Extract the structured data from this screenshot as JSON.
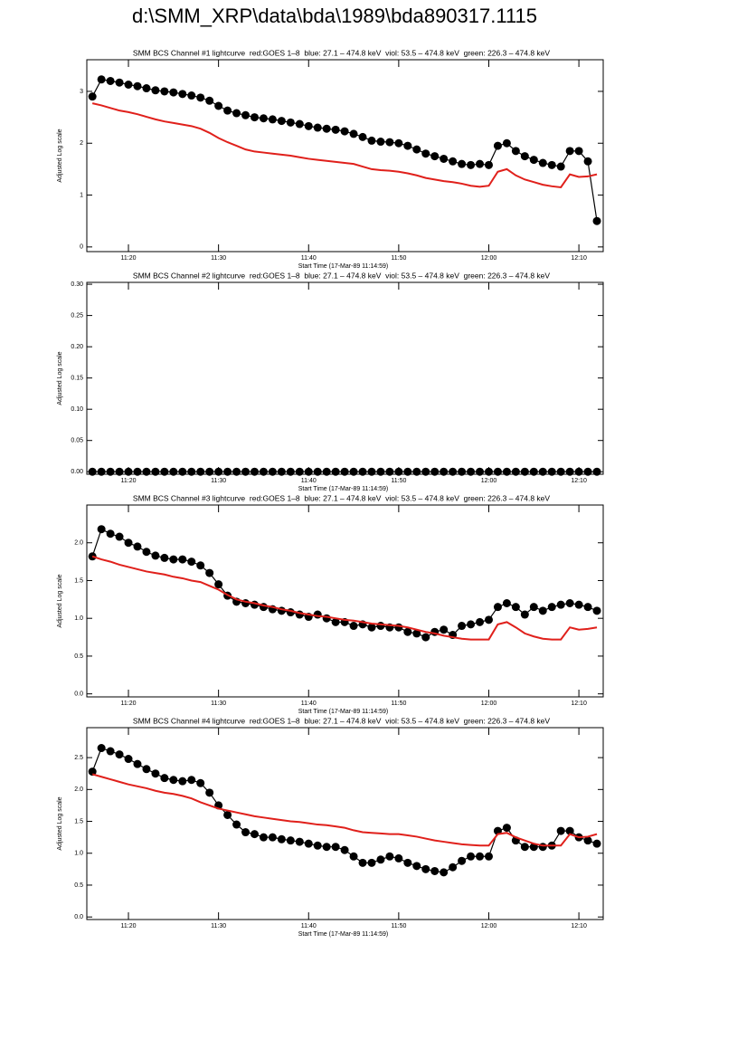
{
  "title": "d:\\SMM_XRP\\data\\bda\\1989\\bda890317.1115",
  "chart_data": [
    {
      "type": "line",
      "title": "SMM BCS Channel #1 lightcurve  red:GOES 1–8  blue: 27.1 – 474.8 keV  viol: 53.5 – 474.8 keV  green: 226.3 – 474.8 keV",
      "xlabel": "Start Time (17-Mar-89 11:14:59)",
      "ylabel": "Adjusted Log scale",
      "x": [
        676,
        677,
        678,
        679,
        680,
        681,
        682,
        683,
        684,
        685,
        686,
        687,
        688,
        689,
        690,
        691,
        692,
        693,
        694,
        695,
        696,
        697,
        698,
        699,
        700,
        701,
        702,
        703,
        704,
        705,
        706,
        707,
        708,
        709,
        710,
        711,
        712,
        713,
        714,
        715,
        716,
        717,
        718,
        719,
        720,
        721,
        722,
        723,
        724,
        725,
        726,
        727,
        728,
        729,
        730,
        731,
        732
      ],
      "series": [
        {
          "color": "#000000",
          "marker": "circle",
          "values": [
            2.9,
            3.23,
            3.2,
            3.17,
            3.13,
            3.1,
            3.06,
            3.02,
            3.0,
            2.98,
            2.95,
            2.92,
            2.88,
            2.82,
            2.72,
            2.63,
            2.58,
            2.54,
            2.5,
            2.48,
            2.46,
            2.43,
            2.4,
            2.37,
            2.33,
            2.3,
            2.28,
            2.26,
            2.23,
            2.18,
            2.12,
            2.05,
            2.03,
            2.02,
            2.0,
            1.95,
            1.88,
            1.8,
            1.75,
            1.7,
            1.65,
            1.6,
            1.58,
            1.6,
            1.58,
            1.95,
            2.0,
            1.85,
            1.75,
            1.68,
            1.62,
            1.58,
            1.55,
            1.85,
            1.85,
            1.65,
            0.5
          ]
        },
        {
          "color": "#e0201b",
          "marker": "none",
          "values": [
            2.77,
            2.73,
            2.68,
            2.63,
            2.6,
            2.56,
            2.51,
            2.46,
            2.42,
            2.39,
            2.36,
            2.33,
            2.28,
            2.2,
            2.1,
            2.02,
            1.95,
            1.88,
            1.84,
            1.82,
            1.8,
            1.78,
            1.76,
            1.73,
            1.7,
            1.68,
            1.66,
            1.64,
            1.62,
            1.6,
            1.55,
            1.5,
            1.48,
            1.47,
            1.45,
            1.42,
            1.38,
            1.33,
            1.3,
            1.27,
            1.25,
            1.22,
            1.18,
            1.16,
            1.18,
            1.45,
            1.5,
            1.38,
            1.3,
            1.25,
            1.2,
            1.17,
            1.15,
            1.4,
            1.35,
            1.36,
            1.4
          ]
        }
      ],
      "xlim": [
        675.38,
        732.7
      ],
      "ylim": [
        -0.09,
        3.61
      ],
      "xticks": [
        {
          "value": 680,
          "label": "11:20"
        },
        {
          "value": 690,
          "label": "11:30"
        },
        {
          "value": 700,
          "label": "11:40"
        },
        {
          "value": 710,
          "label": "11:50"
        },
        {
          "value": 720,
          "label": "12:00"
        },
        {
          "value": 730,
          "label": "12:10"
        }
      ],
      "yticks": [
        0,
        1,
        2,
        3
      ]
    },
    {
      "type": "line",
      "title": "SMM BCS Channel #2 lightcurve  red:GOES 1–8  blue: 27.1 – 474.8 keV  viol: 53.5 – 474.8 keV  green: 226.3 – 474.8 keV",
      "xlabel": "Start Time (17-Mar-89 11:14:59)",
      "ylabel": "Adjusted Log scale",
      "x": [
        676,
        677,
        678,
        679,
        680,
        681,
        682,
        683,
        684,
        685,
        686,
        687,
        688,
        689,
        690,
        691,
        692,
        693,
        694,
        695,
        696,
        697,
        698,
        699,
        700,
        701,
        702,
        703,
        704,
        705,
        706,
        707,
        708,
        709,
        710,
        711,
        712,
        713,
        714,
        715,
        716,
        717,
        718,
        719,
        720,
        721,
        722,
        723,
        724,
        725,
        726,
        727,
        728,
        729,
        730,
        731,
        732
      ],
      "series": [
        {
          "color": "#000000",
          "marker": "circle",
          "values": [
            0,
            0,
            0,
            0,
            0,
            0,
            0,
            0,
            0,
            0,
            0,
            0,
            0,
            0,
            0,
            0,
            0,
            0,
            0,
            0,
            0,
            0,
            0,
            0,
            0,
            0,
            0,
            0,
            0,
            0,
            0,
            0,
            0,
            0,
            0,
            0,
            0,
            0,
            0,
            0,
            0,
            0,
            0,
            0,
            0,
            0,
            0,
            0,
            0,
            0,
            0,
            0,
            0,
            0,
            0,
            0,
            0
          ]
        }
      ],
      "xlim": [
        675.38,
        732.7
      ],
      "ylim": [
        -0.004,
        0.303
      ],
      "xticks": [
        {
          "value": 680,
          "label": "11:20"
        },
        {
          "value": 690,
          "label": "11:30"
        },
        {
          "value": 700,
          "label": "11:40"
        },
        {
          "value": 710,
          "label": "11:50"
        },
        {
          "value": 720,
          "label": "12:00"
        },
        {
          "value": 730,
          "label": "12:10"
        }
      ],
      "yticks": [
        {
          "value": 0,
          "label": "0.00"
        },
        0.05,
        {
          "value": 0.1,
          "label": "0.10"
        },
        0.15,
        {
          "value": 0.2,
          "label": "0.20"
        },
        0.25,
        {
          "value": 0.3,
          "label": "0.30"
        }
      ]
    },
    {
      "type": "line",
      "title": "SMM BCS Channel #3 lightcurve  red:GOES 1–8  blue: 27.1 – 474.8 keV  viol: 53.5 – 474.8 keV  green: 226.3 – 474.8 keV",
      "xlabel": "Start Time (17-Mar-89 11:14:59)",
      "ylabel": "Adjusted Log scale",
      "x": [
        676,
        677,
        678,
        679,
        680,
        681,
        682,
        683,
        684,
        685,
        686,
        687,
        688,
        689,
        690,
        691,
        692,
        693,
        694,
        695,
        696,
        697,
        698,
        699,
        700,
        701,
        702,
        703,
        704,
        705,
        706,
        707,
        708,
        709,
        710,
        711,
        712,
        713,
        714,
        715,
        716,
        717,
        718,
        719,
        720,
        721,
        722,
        723,
        724,
        725,
        726,
        727,
        728,
        729,
        730,
        731,
        732
      ],
      "series": [
        {
          "color": "#000000",
          "marker": "circle",
          "values": [
            1.82,
            2.18,
            2.12,
            2.08,
            2.0,
            1.95,
            1.88,
            1.83,
            1.8,
            1.78,
            1.78,
            1.75,
            1.7,
            1.6,
            1.45,
            1.3,
            1.22,
            1.2,
            1.18,
            1.15,
            1.12,
            1.1,
            1.08,
            1.05,
            1.02,
            1.05,
            1.0,
            0.95,
            0.95,
            0.9,
            0.92,
            0.88,
            0.9,
            0.88,
            0.88,
            0.82,
            0.8,
            0.75,
            0.82,
            0.85,
            0.78,
            0.9,
            0.92,
            0.95,
            0.98,
            1.15,
            1.2,
            1.15,
            1.05,
            1.15,
            1.1,
            1.15,
            1.18,
            1.2,
            1.18,
            1.15,
            1.1
          ]
        },
        {
          "color": "#e0201b",
          "marker": "none",
          "values": [
            1.82,
            1.78,
            1.75,
            1.71,
            1.68,
            1.65,
            1.62,
            1.6,
            1.58,
            1.55,
            1.53,
            1.5,
            1.48,
            1.43,
            1.38,
            1.31,
            1.25,
            1.22,
            1.2,
            1.17,
            1.15,
            1.12,
            1.1,
            1.07,
            1.05,
            1.03,
            1.02,
            1.0,
            0.98,
            0.97,
            0.95,
            0.93,
            0.92,
            0.91,
            0.9,
            0.88,
            0.85,
            0.82,
            0.8,
            0.77,
            0.75,
            0.73,
            0.72,
            0.72,
            0.72,
            0.92,
            0.95,
            0.88,
            0.8,
            0.76,
            0.73,
            0.72,
            0.72,
            0.88,
            0.85,
            0.86,
            0.88
          ]
        }
      ],
      "xlim": [
        675.38,
        732.7
      ],
      "ylim": [
        -0.04,
        2.5
      ],
      "xticks": [
        {
          "value": 680,
          "label": "11:20"
        },
        {
          "value": 690,
          "label": "11:30"
        },
        {
          "value": 700,
          "label": "11:40"
        },
        {
          "value": 710,
          "label": "11:50"
        },
        {
          "value": 720,
          "label": "12:00"
        },
        {
          "value": 730,
          "label": "12:10"
        }
      ],
      "yticks": [
        {
          "value": 0,
          "label": "0.0"
        },
        0.5,
        {
          "value": 1,
          "label": "1.0"
        },
        1.5,
        {
          "value": 2,
          "label": "2.0"
        }
      ]
    },
    {
      "type": "line",
      "title": "SMM BCS Channel #4 lightcurve  red:GOES 1–8  blue: 27.1 – 474.8 keV  viol: 53.5 – 474.8 keV  green: 226.3 – 474.8 keV",
      "xlabel": "Start Time (17-Mar-89 11:14:59)",
      "ylabel": "Adjusted Log scale",
      "x": [
        676,
        677,
        678,
        679,
        680,
        681,
        682,
        683,
        684,
        685,
        686,
        687,
        688,
        689,
        690,
        691,
        692,
        693,
        694,
        695,
        696,
        697,
        698,
        699,
        700,
        701,
        702,
        703,
        704,
        705,
        706,
        707,
        708,
        709,
        710,
        711,
        712,
        713,
        714,
        715,
        716,
        717,
        718,
        719,
        720,
        721,
        722,
        723,
        724,
        725,
        726,
        727,
        728,
        729,
        730,
        731,
        732
      ],
      "series": [
        {
          "color": "#000000",
          "marker": "circle",
          "values": [
            2.28,
            2.65,
            2.6,
            2.55,
            2.48,
            2.4,
            2.32,
            2.25,
            2.18,
            2.15,
            2.13,
            2.15,
            2.1,
            1.95,
            1.75,
            1.6,
            1.45,
            1.33,
            1.3,
            1.25,
            1.25,
            1.22,
            1.2,
            1.18,
            1.15,
            1.12,
            1.1,
            1.1,
            1.05,
            0.95,
            0.85,
            0.85,
            0.9,
            0.95,
            0.92,
            0.85,
            0.8,
            0.75,
            0.72,
            0.7,
            0.78,
            0.88,
            0.95,
            0.95,
            0.95,
            1.35,
            1.4,
            1.2,
            1.1,
            1.1,
            1.1,
            1.12,
            1.35,
            1.35,
            1.25,
            1.2,
            1.15
          ]
        },
        {
          "color": "#e0201b",
          "marker": "none",
          "values": [
            2.24,
            2.2,
            2.16,
            2.12,
            2.08,
            2.05,
            2.02,
            1.98,
            1.95,
            1.93,
            1.9,
            1.86,
            1.8,
            1.75,
            1.7,
            1.67,
            1.64,
            1.61,
            1.58,
            1.56,
            1.54,
            1.52,
            1.5,
            1.49,
            1.47,
            1.45,
            1.44,
            1.42,
            1.4,
            1.36,
            1.33,
            1.32,
            1.31,
            1.3,
            1.3,
            1.28,
            1.26,
            1.23,
            1.2,
            1.18,
            1.16,
            1.14,
            1.13,
            1.12,
            1.12,
            1.3,
            1.32,
            1.25,
            1.2,
            1.15,
            1.12,
            1.12,
            1.12,
            1.3,
            1.25,
            1.26,
            1.3
          ]
        }
      ],
      "xlim": [
        675.38,
        732.7
      ],
      "ylim": [
        -0.04,
        2.97
      ],
      "xticks": [
        {
          "value": 680,
          "label": "11:20"
        },
        {
          "value": 690,
          "label": "11:30"
        },
        {
          "value": 700,
          "label": "11:40"
        },
        {
          "value": 710,
          "label": "11:50"
        },
        {
          "value": 720,
          "label": "12:00"
        },
        {
          "value": 730,
          "label": "12:10"
        }
      ],
      "yticks": [
        {
          "value": 0,
          "label": "0.0"
        },
        0.5,
        {
          "value": 1,
          "label": "1.0"
        },
        1.5,
        {
          "value": 2,
          "label": "2.0"
        },
        2.5
      ]
    }
  ]
}
